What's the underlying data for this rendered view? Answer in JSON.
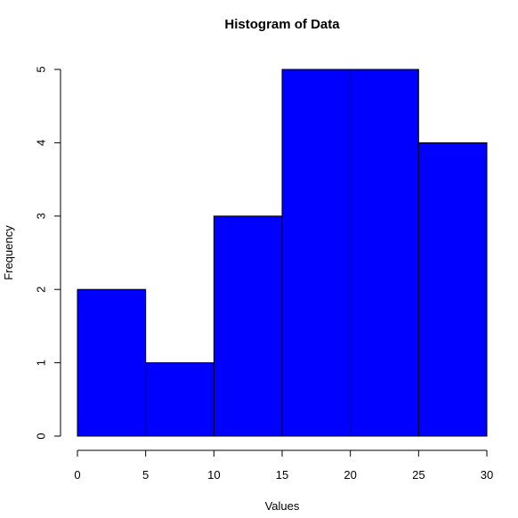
{
  "chart_data": {
    "type": "bar",
    "title": "Histogram of Data",
    "xlabel": "Values",
    "ylabel": "Frequency",
    "bins": [
      {
        "start": 0,
        "end": 5,
        "count": 2
      },
      {
        "start": 5,
        "end": 10,
        "count": 1
      },
      {
        "start": 10,
        "end": 15,
        "count": 3
      },
      {
        "start": 15,
        "end": 20,
        "count": 5
      },
      {
        "start": 20,
        "end": 25,
        "count": 5
      },
      {
        "start": 25,
        "end": 30,
        "count": 4
      }
    ],
    "xlim": [
      0,
      30
    ],
    "ylim": [
      0,
      5
    ],
    "x_ticks": [
      0,
      5,
      10,
      15,
      20,
      25,
      30
    ],
    "y_ticks": [
      0,
      1,
      2,
      3,
      4,
      5
    ],
    "grid": false,
    "bar_color": "#0000ff",
    "border_color": "#000000"
  }
}
